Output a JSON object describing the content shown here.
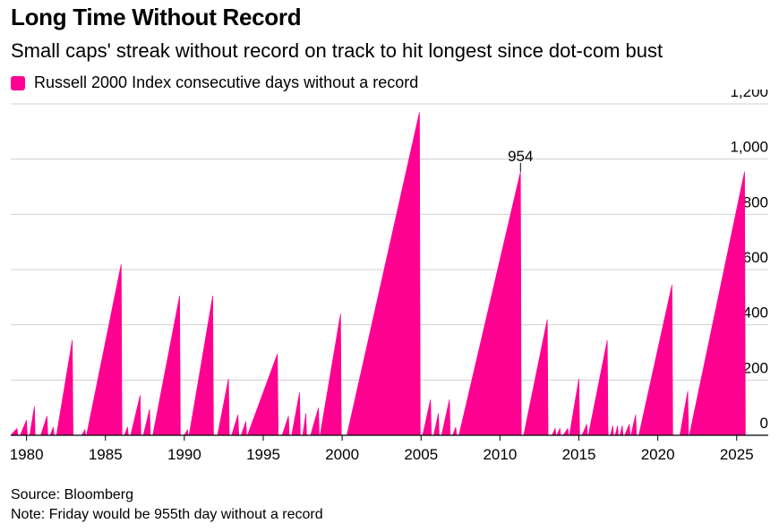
{
  "title": "Long Time Without Record",
  "subtitle": "Small caps' streak without record on track to hit longest since dot-com bust",
  "legend_label": "Russell 2000 Index consecutive days without a record",
  "source": "Source: Bloomberg",
  "note": "Note: Friday would be 955th day without a record",
  "accent_color": "#ff0090",
  "chart_data": {
    "type": "area",
    "title": "Long Time Without Record",
    "subtitle": "Small caps' streak without record on track to hit longest since dot-com bust",
    "xlabel": "",
    "ylabel": "",
    "xlim": [
      1979,
      2027
    ],
    "ylim": [
      0,
      1200
    ],
    "x_ticks": [
      1980,
      1985,
      1990,
      1995,
      2000,
      2005,
      2010,
      2015,
      2020,
      2025
    ],
    "y_ticks": [
      0,
      200,
      400,
      600,
      800,
      1000,
      1200
    ],
    "y_tick_labels": [
      "0",
      "200",
      "400",
      "600",
      "800",
      "1,000",
      "1,200"
    ],
    "grid": true,
    "legend_position": "top-left",
    "series": [
      {
        "name": "Russell 2000 Index consecutive days without a record",
        "color": "#ff0090",
        "points": [
          [
            1979.0,
            0
          ],
          [
            1979.4,
            25
          ],
          [
            1979.45,
            0
          ],
          [
            1979.6,
            0
          ],
          [
            1980.0,
            55
          ],
          [
            1980.05,
            0
          ],
          [
            1980.2,
            0
          ],
          [
            1980.5,
            105
          ],
          [
            1980.55,
            0
          ],
          [
            1980.9,
            0
          ],
          [
            1981.3,
            70
          ],
          [
            1981.35,
            0
          ],
          [
            1981.5,
            0
          ],
          [
            1981.7,
            30
          ],
          [
            1981.75,
            0
          ],
          [
            1981.9,
            0
          ],
          [
            1982.9,
            345
          ],
          [
            1982.95,
            0
          ],
          [
            1983.5,
            0
          ],
          [
            1983.7,
            20
          ],
          [
            1983.75,
            0
          ],
          [
            1983.8,
            0
          ],
          [
            1986.0,
            620
          ],
          [
            1986.05,
            0
          ],
          [
            1986.2,
            0
          ],
          [
            1986.4,
            30
          ],
          [
            1986.45,
            0
          ],
          [
            1986.6,
            0
          ],
          [
            1987.2,
            145
          ],
          [
            1987.25,
            0
          ],
          [
            1987.4,
            0
          ],
          [
            1987.8,
            95
          ],
          [
            1987.85,
            0
          ],
          [
            1988.0,
            0
          ],
          [
            1989.7,
            505
          ],
          [
            1989.75,
            0
          ],
          [
            1990.0,
            0
          ],
          [
            1990.2,
            20
          ],
          [
            1990.25,
            0
          ],
          [
            1990.3,
            0
          ],
          [
            1991.8,
            505
          ],
          [
            1991.85,
            0
          ],
          [
            1992.1,
            0
          ],
          [
            1992.8,
            205
          ],
          [
            1992.85,
            0
          ],
          [
            1993.0,
            0
          ],
          [
            1993.4,
            75
          ],
          [
            1993.45,
            0
          ],
          [
            1993.6,
            0
          ],
          [
            1993.9,
            50
          ],
          [
            1993.95,
            0
          ],
          [
            1994.0,
            0
          ],
          [
            1995.9,
            295
          ],
          [
            1995.95,
            0
          ],
          [
            1996.2,
            0
          ],
          [
            1996.6,
            70
          ],
          [
            1996.65,
            0
          ],
          [
            1996.8,
            0
          ],
          [
            1997.3,
            155
          ],
          [
            1997.35,
            0
          ],
          [
            1997.5,
            0
          ],
          [
            1997.7,
            80
          ],
          [
            1997.75,
            0
          ],
          [
            1998.0,
            0
          ],
          [
            1998.5,
            100
          ],
          [
            1998.55,
            0
          ],
          [
            1998.6,
            0
          ],
          [
            1999.9,
            440
          ],
          [
            1999.95,
            0
          ],
          [
            2000.3,
            0
          ],
          [
            2004.9,
            1170
          ],
          [
            2004.95,
            0
          ],
          [
            2005.1,
            0
          ],
          [
            2005.6,
            130
          ],
          [
            2005.65,
            0
          ],
          [
            2005.8,
            0
          ],
          [
            2006.1,
            80
          ],
          [
            2006.15,
            0
          ],
          [
            2006.3,
            0
          ],
          [
            2006.8,
            130
          ],
          [
            2006.85,
            0
          ],
          [
            2007.0,
            0
          ],
          [
            2007.2,
            30
          ],
          [
            2007.25,
            0
          ],
          [
            2007.4,
            0
          ],
          [
            2011.3,
            954
          ],
          [
            2011.35,
            0
          ],
          [
            2011.5,
            0
          ],
          [
            2013.0,
            420
          ],
          [
            2013.05,
            0
          ],
          [
            2013.3,
            0
          ],
          [
            2013.5,
            25
          ],
          [
            2013.55,
            0
          ],
          [
            2013.6,
            0
          ],
          [
            2013.8,
            25
          ],
          [
            2013.85,
            0
          ],
          [
            2014.0,
            0
          ],
          [
            2014.3,
            25
          ],
          [
            2014.35,
            0
          ],
          [
            2014.4,
            0
          ],
          [
            2015.0,
            205
          ],
          [
            2015.05,
            0
          ],
          [
            2015.2,
            0
          ],
          [
            2015.5,
            40
          ],
          [
            2015.55,
            0
          ],
          [
            2015.6,
            0
          ],
          [
            2016.8,
            345
          ],
          [
            2016.85,
            0
          ],
          [
            2017.0,
            0
          ],
          [
            2017.15,
            35
          ],
          [
            2017.2,
            0
          ],
          [
            2017.3,
            0
          ],
          [
            2017.45,
            35
          ],
          [
            2017.5,
            0
          ],
          [
            2017.6,
            0
          ],
          [
            2017.75,
            35
          ],
          [
            2017.8,
            0
          ],
          [
            2017.9,
            0
          ],
          [
            2018.2,
            40
          ],
          [
            2018.25,
            0
          ],
          [
            2018.3,
            0
          ],
          [
            2018.6,
            75
          ],
          [
            2018.65,
            0
          ],
          [
            2018.8,
            0
          ],
          [
            2020.9,
            545
          ],
          [
            2020.95,
            0
          ],
          [
            2021.4,
            0
          ],
          [
            2021.9,
            160
          ],
          [
            2021.95,
            0
          ],
          [
            2022.0,
            0
          ],
          [
            2025.5,
            955
          ],
          [
            2025.55,
            0
          ]
        ]
      }
    ],
    "annotations": [
      {
        "text": "954",
        "x": 2011.3,
        "y": 954
      }
    ]
  }
}
